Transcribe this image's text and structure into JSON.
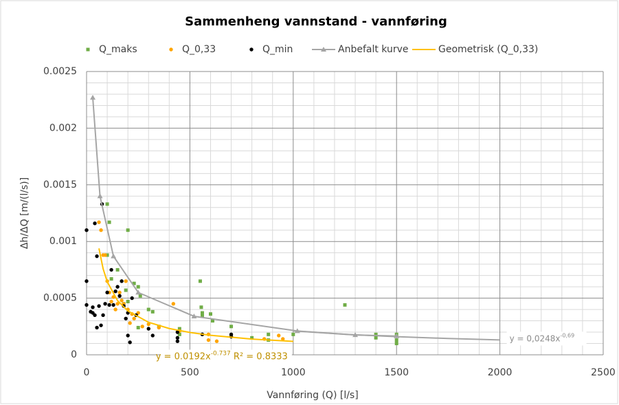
{
  "chart_data": {
    "type": "scatter",
    "title": "Sammenheng vannstand - vannføring",
    "x_label": "Vannføring (Q) [l/s]",
    "y_label": "Δh/ΔQ [m/(l/s)]",
    "xlim": [
      0,
      2500
    ],
    "ylim": [
      0,
      0.0025
    ],
    "xticks": [
      0,
      500,
      1000,
      1500,
      2000,
      2500
    ],
    "yticks": [
      0,
      0.0005,
      0.001,
      0.0015,
      0.002,
      0.0025
    ],
    "xminorticks": [
      100,
      200,
      300,
      400,
      600,
      700,
      800,
      900,
      1100,
      1200,
      1300,
      1400,
      1600,
      1700,
      1800,
      1900,
      2100,
      2200,
      2300,
      2400
    ],
    "yminorticks": [
      0.0001,
      0.0002,
      0.0003,
      0.0004,
      0.0006,
      0.0007,
      0.0008,
      0.0009,
      0.0011,
      0.0012,
      0.0013,
      0.0014,
      0.0016,
      0.0017,
      0.0018,
      0.0019,
      0.0021,
      0.0022,
      0.0023,
      0.0024
    ],
    "grid": true,
    "legend": "top",
    "series": [
      {
        "name": "Q_maks",
        "color": "#70ad47",
        "marker": "square",
        "line": false,
        "x": [
          100,
          110,
          200,
          100,
          190,
          230,
          250,
          260,
          200,
          320,
          450,
          450,
          550,
          555,
          560,
          560,
          600,
          610,
          700,
          800,
          880,
          880,
          1000,
          1250,
          1400,
          1400,
          1500,
          1500,
          1500,
          150,
          120,
          180,
          300,
          350,
          250
        ],
        "values": [
          0.00133,
          0.00117,
          0.0011,
          0.00088,
          0.00057,
          0.00063,
          0.0006,
          0.00052,
          0.00047,
          0.00038,
          0.00023,
          0.00018,
          0.00065,
          0.00042,
          0.00037,
          0.00034,
          0.00036,
          0.0003,
          0.00025,
          0.00015,
          0.00018,
          0.00013,
          0.00018,
          0.00044,
          0.00018,
          0.00015,
          0.00018,
          0.00013,
          0.0001,
          0.00075,
          0.00067,
          0.00045,
          0.0004,
          0.00025,
          0.00024
        ]
      },
      {
        "name": "Q_0,33",
        "color": "#ffa500",
        "marker": "circle",
        "line": false,
        "x": [
          60,
          70,
          80,
          90,
          100,
          110,
          120,
          130,
          150,
          160,
          170,
          180,
          190,
          200,
          220,
          230,
          250,
          270,
          300,
          350,
          420,
          450,
          590,
          590,
          630,
          700,
          860,
          930,
          950,
          140,
          210
        ],
        "values": [
          0.00117,
          0.0011,
          0.00088,
          0.00088,
          0.00065,
          0.00055,
          0.00047,
          0.00051,
          0.00045,
          0.00055,
          0.00048,
          0.00045,
          0.00065,
          0.0004,
          0.00036,
          0.00032,
          0.00037,
          0.00025,
          0.00027,
          0.00024,
          0.00045,
          0.00021,
          0.00018,
          0.00013,
          0.00012,
          0.00016,
          0.00014,
          0.00017,
          0.00014,
          0.0004,
          0.00028
        ]
      },
      {
        "name": "Q_min",
        "color": "#000000",
        "marker": "circle",
        "line": false,
        "x": [
          0,
          0,
          0,
          30,
          30,
          40,
          40,
          50,
          60,
          70,
          75,
          80,
          90,
          100,
          110,
          120,
          130,
          140,
          150,
          160,
          170,
          180,
          190,
          200,
          200,
          210,
          220,
          240,
          300,
          320,
          440,
          440,
          440,
          560,
          700,
          700,
          50,
          20
        ],
        "values": [
          0.0011,
          0.00065,
          0.00044,
          0.00042,
          0.00037,
          0.00116,
          0.00035,
          0.00087,
          0.00043,
          0.00026,
          0.00133,
          0.00035,
          0.00045,
          0.00055,
          0.00044,
          0.00075,
          0.00044,
          0.00056,
          0.0006,
          0.00052,
          0.00065,
          0.00043,
          0.00032,
          0.00037,
          0.00017,
          0.00011,
          0.0005,
          0.00035,
          0.00023,
          0.00017,
          0.00015,
          0.00012,
          0.0002,
          0.00018,
          0.00018,
          0.00016,
          0.00024,
          0.00038
        ]
      },
      {
        "name": "Anbefalt kurve",
        "color": "#a5a5a5",
        "marker": "triangle",
        "line": true,
        "x": [
          30,
          65,
          130,
          250,
          520,
          1020,
          1300,
          1500
        ],
        "values": [
          0.00227,
          0.0014,
          0.00087,
          0.00055,
          0.00034,
          0.00021,
          0.000175,
          0.000165
        ]
      },
      {
        "name": "Geometrisk (Q_0,33)",
        "color": "#ffc000",
        "marker": "none",
        "line": true,
        "equation": "y = 0.0192x",
        "exponent": "-0.737",
        "r2": " R² = 0.8333",
        "x": [
          60,
          80,
          100,
          150,
          200,
          300,
          400,
          500,
          600,
          800,
          1000
        ],
        "values": [
          0.000939,
          0.00076,
          0.000645,
          0.000478,
          0.000387,
          0.000287,
          0.000232,
          0.000197,
          0.000172,
          0.000139,
          0.000118
        ]
      }
    ],
    "trendlines": [
      {
        "color": "#a5a5a5",
        "equation": "y = 0,0248x",
        "exponent": "-0,69",
        "x": [
          1000,
          1250,
          1500,
          1750,
          2000
        ],
        "values": [
          0.000211,
          0.000181,
          0.00016,
          0.000144,
          0.000131
        ]
      }
    ]
  }
}
